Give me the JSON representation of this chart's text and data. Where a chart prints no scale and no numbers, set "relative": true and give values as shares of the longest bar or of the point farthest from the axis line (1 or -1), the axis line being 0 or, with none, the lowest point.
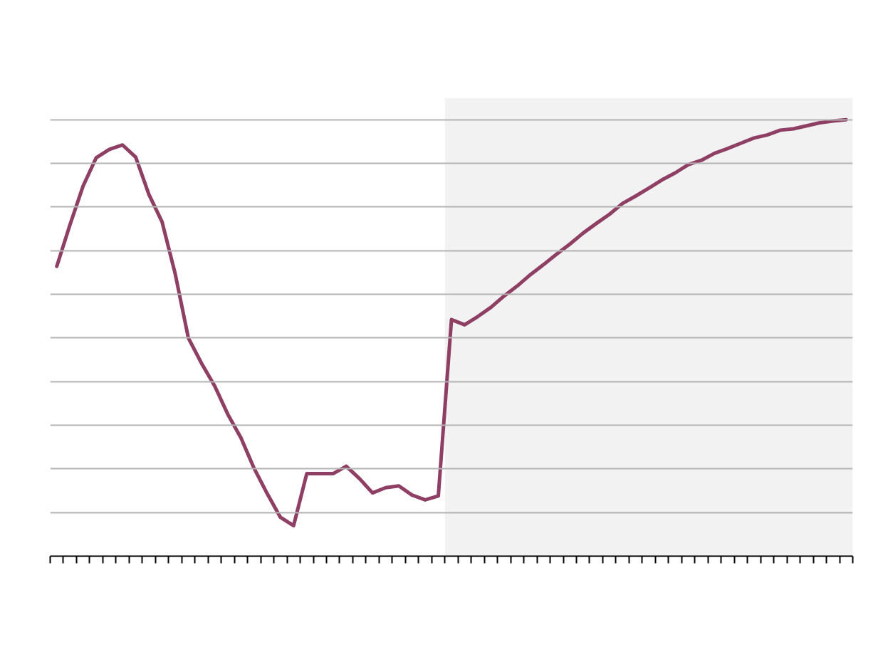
{
  "chart_data": {
    "type": "line",
    "relative": true,
    "categories": [
      null,
      null,
      null,
      null,
      null,
      null,
      null,
      null,
      null,
      null,
      null,
      null,
      null,
      null,
      null,
      null,
      null,
      null,
      null,
      null,
      null,
      null,
      null,
      null,
      null,
      null,
      null,
      null,
      null,
      null,
      null,
      null,
      null,
      null,
      null,
      null,
      null,
      null,
      null,
      null,
      null,
      null,
      null,
      null,
      null,
      null,
      null,
      null,
      null,
      null,
      null,
      null,
      null,
      null,
      null,
      null,
      null,
      null,
      null,
      null,
      null
    ],
    "series": [
      {
        "color": "#8e3f63",
        "values": [
          0.664,
          0.759,
          0.848,
          0.913,
          0.932,
          0.942,
          0.914,
          0.829,
          0.766,
          0.647,
          0.5,
          0.442,
          0.39,
          0.325,
          0.271,
          0.201,
          0.143,
          0.089,
          0.07,
          0.189,
          0.189,
          0.189,
          0.206,
          0.178,
          0.145,
          0.157,
          0.161,
          0.14,
          0.129,
          0.138,
          0.542,
          0.53,
          0.549,
          0.57,
          0.596,
          0.619,
          0.645,
          0.668,
          0.692,
          0.715,
          0.74,
          0.762,
          0.783,
          0.808,
          0.825,
          0.843,
          0.862,
          0.878,
          0.897,
          0.907,
          0.923,
          0.934,
          0.946,
          0.958,
          0.965,
          0.976,
          0.979,
          0.986,
          0.993,
          0.997,
          1.0
        ]
      }
    ],
    "grid": "y",
    "tick_labels": false,
    "marker": "none",
    "line_style": "solid"
  }
}
